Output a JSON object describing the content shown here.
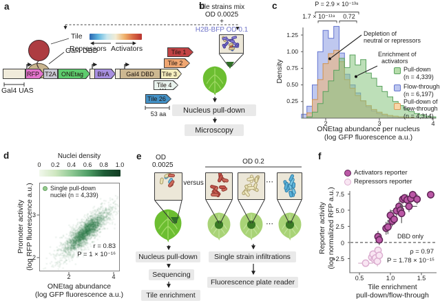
{
  "figure": {
    "panel_a": {
      "label": "a",
      "tile_callout": "Tile",
      "dbd_callout": "Gal4 DBD",
      "uas_label": "Gal4 UAS",
      "scale_label": "53 aa",
      "dots": "⋯",
      "gradient": {
        "left_label": "Repressors",
        "right_label": "Activators",
        "colors": [
          "#2a66b0",
          "#5fb6e0",
          "#c8e6ee",
          "#f2ecd4",
          "#efb26c",
          "#d96a44",
          "#b93330"
        ]
      },
      "construct": {
        "rfp": "RFP",
        "t2a": "T2A",
        "onetag": "ONEtag",
        "bira": "BirA",
        "gal4dbd": "Gal4 DBD",
        "tile3": "Tile 3"
      },
      "construct_colors": {
        "rfp": "#e474cd",
        "t2a": "#c9c9d4",
        "onetag": "#5ecc6e",
        "bira": "#a78fe0",
        "gal4dbd": "#cdb891",
        "tile3": "#f5efbf",
        "uas": "#f0ebdb",
        "backbone": "#f0ebdb"
      },
      "tiles": [
        {
          "label": "Tile 1",
          "color": "#c14345"
        },
        {
          "label": "Tile 2",
          "color": "#efa671"
        },
        {
          "label": "Tile 4",
          "color": "#e9f3ee"
        },
        {
          "label": "Tile 26",
          "color": "#4391c6"
        }
      ]
    },
    "panel_b": {
      "label": "b",
      "title_line1": "Tile strains mix",
      "title_line2": "OD 0.0025",
      "plus": "+",
      "bfp_line": "H2B-BFP OD 0.1",
      "bfp_color": "#6f74c9",
      "steps": [
        "Nucleus pull-down",
        "Microscopy"
      ]
    },
    "panel_c": {
      "label": "c",
      "pval_top": "P = 2.9 × 10⁻¹³⁸",
      "pval_left": "1.7 × 10⁻¹¹⁹",
      "pval_right": "0.72",
      "ann1_line1": "Depletion of",
      "ann1_line2": "neutral or repressors",
      "ann2_line1": "Enrichment of",
      "ann2_line2": "activators",
      "legend": [
        {
          "label": "Pull-down",
          "label2": "",
          "n": "(n = 4,339)",
          "color": "#b7dcab",
          "border": "#56a25c"
        },
        {
          "label": "Flow-through",
          "label2": "",
          "n": "(n = 6,197)",
          "color": "#bcc6ef",
          "border": "#6273cf"
        },
        {
          "label": "Pull-down of",
          "label2": "flow-through",
          "n": "(n = 4,314)",
          "color": "#f8d6a8",
          "border": "#d89a55"
        }
      ]
    },
    "panel_d": {
      "label": "d",
      "colorbar_title": "Nuclei density",
      "legend_line1": "Single pull-down",
      "legend_line2": "nuclei (n = 4,339)",
      "stat_r": "r = 0.83",
      "stat_p": "P = 1 × 10⁻¹⁶",
      "ylabel_line1": "Promoter activity",
      "ylabel_line2": "(log RFP fluorescence a.u.)",
      "xlabel_line1": "ONEtag abundance",
      "xlabel_line2": "(log GFP fluorescence a.u.)"
    },
    "panel_e": {
      "label": "e",
      "od_low_line1": "OD",
      "od_low_line2": "0.0025",
      "versus": "versus",
      "od_high": "OD 0.2",
      "dots": "⋯",
      "left_steps": [
        "Nucleus pull-down",
        "Sequencing",
        "Tile enrichment"
      ],
      "right_steps": [
        "Single strain infiltrations",
        "Fluorescence plate reader"
      ]
    },
    "panel_f": {
      "label": "f",
      "legend": [
        {
          "label": "Activators reporter",
          "fill": "#bb58a6",
          "stroke": "#5f2355"
        },
        {
          "label": "Repressors reporter",
          "fill": "#f9e6f3",
          "stroke": "#dcaed0"
        }
      ],
      "dbd_label": "DBD only",
      "stat_rho": "ρ = 0.97",
      "stat_p": "P = 1.78 × 10⁻¹⁵",
      "ylabel_line1": "Reporter activity",
      "ylabel_line2": "(log normalized RFP a.u.)",
      "xlabel_line1": "Tile enrichment",
      "xlabel_line2": "pull-down/flow-through"
    }
  },
  "rods": {
    "b_box": {
      "seed": 7,
      "count": 15,
      "rod": [
        8,
        3.8
      ],
      "palette": [
        [
          "#8a80d8",
          "#534a9e"
        ],
        [
          "#8a80d8",
          "#534a9e"
        ],
        [
          "#6f66c8",
          "#453c92"
        ],
        [
          "#5b74c4",
          "#35519e"
        ],
        [
          "#c2574e",
          "#8c2f2a"
        ],
        [
          "#d8c79e",
          "#a08e60"
        ]
      ]
    },
    "e_mix": {
      "seed": 3,
      "count": 7,
      "rod": [
        10,
        4.8
      ],
      "palette": [
        [
          "#cd6a5c",
          "#933f35"
        ],
        [
          "#e9e2b4",
          "#a89a66"
        ],
        [
          "#79c0dc",
          "#3f83a8"
        ]
      ]
    },
    "e_red": {
      "seed": 5,
      "count": 12,
      "rod": [
        10.5,
        5.2
      ],
      "palette": [
        [
          "#cd6a5c",
          "#933f35"
        ],
        [
          "#c2574b",
          "#8e2f2c"
        ]
      ]
    },
    "e_cream": {
      "seed": 9,
      "count": 12,
      "rod": [
        10.5,
        5.2
      ],
      "palette": [
        [
          "#e9e2b4",
          "#a89a66"
        ],
        [
          "#efe9c2",
          "#b3a575"
        ]
      ]
    },
    "e_blue": {
      "seed": 11,
      "count": 12,
      "rod": [
        10.5,
        5.2
      ],
      "palette": [
        [
          "#5ab1d8",
          "#2f7da6"
        ],
        [
          "#79c7e4",
          "#2f7da6"
        ]
      ]
    }
  },
  "chart_data": [
    {
      "id": "c",
      "type": "histogram",
      "xlabel_line1": "ONEtag abundance per nucleus",
      "xlabel_line2": "(log GFP fluorescence a.u.)",
      "ylabel": "Density",
      "xlim": [
        1.53,
        4.04
      ],
      "ylim": [
        0,
        1.45
      ],
      "xticks": [
        2,
        3,
        4
      ],
      "xtick_labels": [
        "2",
        "3",
        "4"
      ],
      "yticks": [
        0.25,
        0.5,
        0.75,
        1.0,
        1.25
      ],
      "ytick_labels": [
        "0.25",
        "0.50",
        "0.75",
        "1.00",
        "1.25"
      ],
      "bin_start": 1.55,
      "bin_width": 0.1,
      "series": [
        {
          "name": "Flow-through",
          "n": 6197,
          "fill": "rgba(128,146,224,0.50)",
          "stroke": "#6273cf",
          "values": [
            0.06,
            0.18,
            0.5,
            1.0,
            1.32,
            1.2,
            1.38,
            0.98,
            0.66,
            0.5,
            0.38,
            0.26,
            0.17,
            0.11,
            0.07,
            0.04,
            0.02,
            0.01,
            0.01,
            0,
            0,
            0,
            0,
            0,
            0
          ]
        },
        {
          "name": "Pull-down of flow-through",
          "n": 4314,
          "fill": "rgba(244,176,107,0.52)",
          "stroke": "#d0924e",
          "values": [
            0,
            0.08,
            0.28,
            0.58,
            0.82,
            0.97,
            1.02,
            0.85,
            0.58,
            0.45,
            0.34,
            0.26,
            0.19,
            0.13,
            0.09,
            0.06,
            0.04,
            0.03,
            0.02,
            0.01,
            0.01,
            0,
            0,
            0,
            0
          ]
        },
        {
          "name": "Pull-down",
          "n": 4339,
          "fill": "rgba(134,196,126,0.55)",
          "stroke": "#57a05c",
          "values": [
            0,
            0.02,
            0.09,
            0.22,
            0.4,
            0.56,
            0.72,
            0.9,
            0.76,
            0.95,
            0.8,
            0.88,
            0.68,
            0.6,
            0.48,
            0.4,
            0.32,
            0.25,
            0.19,
            0.14,
            0.1,
            0.07,
            0.05,
            0.03,
            0.02
          ]
        }
      ]
    },
    {
      "id": "d",
      "type": "density-scatter",
      "n_points": 4339,
      "correlation": 0.83,
      "colorbar_title": "Nuclei density",
      "colorbar_ticks": [
        "0",
        "0.2",
        "0.4",
        "0.6",
        "0.8",
        "1.0"
      ],
      "xlim": [
        0.7,
        4.25
      ],
      "ylim": [
        1.95,
        3.74
      ],
      "xticks": [
        2,
        4
      ],
      "xtick_labels": [
        "2",
        "4"
      ],
      "yticks": [
        2,
        3
      ],
      "ytick_labels": [
        "2",
        "3"
      ],
      "center": [
        2.7,
        2.6
      ]
    },
    {
      "id": "f",
      "type": "scatter",
      "xlim": [
        0.34,
        1.72
      ],
      "ylim": [
        -4.7,
        8.6
      ],
      "xticks": [
        0.5,
        1.0,
        1.5
      ],
      "xtick_labels": [
        "0.5",
        "1.0",
        "1.5"
      ],
      "yticks": [
        7.5,
        5.0,
        2.5,
        0,
        -2.5
      ],
      "ytick_labels": [
        "7.5",
        "5.0",
        "2.5",
        "0",
        "−2.5"
      ],
      "dashed_y": 0,
      "series": [
        {
          "name": "Repressors reporter",
          "fill": "#f9e6f3",
          "stroke": "#dcaed0",
          "err": "#d9b3cc",
          "points": [
            [
              0.6,
              -3.2,
              0.12,
              0.5
            ],
            [
              0.7,
              -2.3,
              0.05,
              0.6
            ],
            [
              0.72,
              -1.8,
              0.04,
              0.5
            ],
            [
              0.74,
              -2.6,
              0.05,
              0.7
            ],
            [
              0.76,
              -2.4,
              0.04,
              0.6
            ],
            [
              0.79,
              -2.9,
              0.05,
              0.8
            ],
            [
              0.8,
              -1.2,
              0.04,
              0.5
            ],
            [
              0.82,
              -2.0,
              0.05,
              0.6
            ]
          ]
        },
        {
          "name": "Activators reporter",
          "fill": "#bb58a6",
          "stroke": "#5f2355",
          "err": "#5a5a5a",
          "points": [
            [
              0.8,
              0.9,
              0.05,
              0.9
            ],
            [
              0.82,
              0.4,
              0.04,
              0.8
            ],
            [
              0.93,
              2.2,
              0.04,
              1.0
            ],
            [
              0.96,
              2.4,
              0.05,
              1.1
            ],
            [
              1.0,
              4.2,
              0.04,
              0.9
            ],
            [
              1.03,
              3.3,
              0.04,
              0.8
            ],
            [
              1.06,
              3.6,
              0.05,
              0.7
            ],
            [
              1.1,
              4.9,
              0.1,
              0.8
            ],
            [
              1.14,
              5.6,
              0.05,
              0.8
            ],
            [
              1.16,
              5.0,
              0.04,
              0.9
            ],
            [
              1.18,
              4.5,
              0.05,
              1.5
            ],
            [
              1.2,
              6.7,
              0.05,
              0.7
            ],
            [
              1.23,
              6.9,
              0.04,
              0.6
            ],
            [
              1.27,
              6.6,
              0.05,
              0.8
            ],
            [
              1.3,
              5.6,
              0.13,
              0.9
            ],
            [
              1.33,
              6.8,
              0.04,
              0.7
            ],
            [
              1.36,
              7.4,
              0.05,
              0.6
            ],
            [
              1.43,
              6.7,
              0.05,
              0.8
            ],
            [
              1.65,
              7.4,
              0.06,
              0.6
            ]
          ]
        }
      ]
    }
  ]
}
